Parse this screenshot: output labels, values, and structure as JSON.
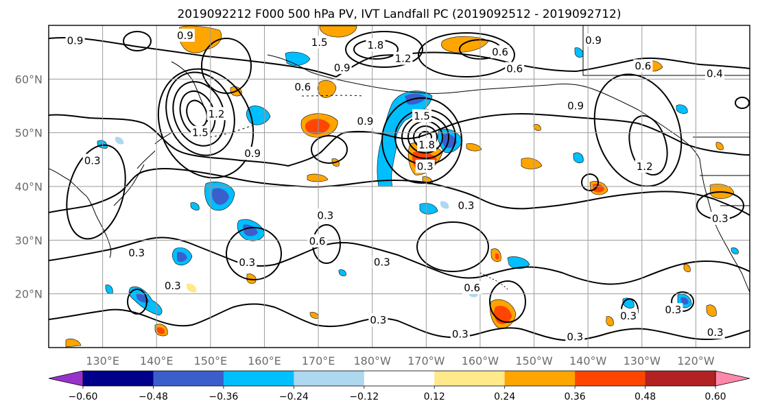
{
  "title": "2019092212 F000 500 hPa PV, IVT Landfall PC (2019092512 - 2019092712)",
  "axes": {
    "lon_labels": [
      "130°E",
      "140°E",
      "150°E",
      "160°E",
      "170°E",
      "180°W",
      "170°W",
      "160°W",
      "150°W",
      "140°W",
      "130°W",
      "120°W"
    ],
    "lon_values": [
      130,
      140,
      150,
      160,
      170,
      180,
      190,
      200,
      210,
      220,
      230,
      240
    ],
    "lat_labels": [
      "20°N",
      "30°N",
      "40°N",
      "50°N",
      "60°N"
    ],
    "lat_values": [
      20,
      30,
      40,
      50,
      60
    ],
    "lon_range": [
      120,
      250
    ],
    "lat_range": [
      10,
      70
    ],
    "grid": true,
    "grid_color": "#9a9a9a"
  },
  "colorbar": {
    "position": "bottom",
    "extend": "both",
    "bounds": [
      -0.72,
      -0.6,
      -0.48,
      -0.36,
      -0.24,
      -0.12,
      0.12,
      0.24,
      0.36,
      0.48,
      0.6,
      0.72
    ],
    "colors": [
      "#9932cc",
      "#00008b",
      "#3a5fcd",
      "#00bfff",
      "#add8f0",
      "#ffffff",
      "#ffe98a",
      "#ffa500",
      "#ff4500",
      "#b22222",
      "#ff88aa"
    ],
    "tick_values": [
      -0.6,
      -0.48,
      -0.36,
      -0.24,
      -0.12,
      0.12,
      0.24,
      0.36,
      0.48,
      0.6
    ],
    "tick_labels": [
      "−0.60",
      "−0.48",
      "−0.36",
      "−0.24",
      "−0.12",
      "0.12",
      "0.24",
      "0.36",
      "0.48",
      "0.60"
    ]
  },
  "contour_labels": [
    {
      "text": "0.9",
      "lon": 124.9,
      "lat": 67.1
    },
    {
      "text": "0.9",
      "lon": 145.3,
      "lat": 68.1
    },
    {
      "text": "1.5",
      "lon": 170.2,
      "lat": 66.8
    },
    {
      "text": "1.8",
      "lon": 180.6,
      "lat": 66.3
    },
    {
      "text": "1.2",
      "lon": 185.7,
      "lat": 63.8
    },
    {
      "text": "0.6",
      "lon": 203.7,
      "lat": 65.0
    },
    {
      "text": "0.9",
      "lon": 221.0,
      "lat": 67.2
    },
    {
      "text": "0.6",
      "lon": 230.2,
      "lat": 62.4
    },
    {
      "text": "0.6",
      "lon": 206.4,
      "lat": 61.9
    },
    {
      "text": "0.9",
      "lon": 174.4,
      "lat": 62.1
    },
    {
      "text": "0.6",
      "lon": 167.1,
      "lat": 58.5
    },
    {
      "text": "0.9",
      "lon": 217.7,
      "lat": 55.0
    },
    {
      "text": "0.4",
      "lon": 243.5,
      "lat": 61.0
    },
    {
      "text": "1.2",
      "lon": 151.1,
      "lat": 53.5
    },
    {
      "text": "1.5",
      "lon": 148.1,
      "lat": 50.0
    },
    {
      "text": "0.9",
      "lon": 178.7,
      "lat": 52.1
    },
    {
      "text": "1.5",
      "lon": 189.2,
      "lat": 53.1
    },
    {
      "text": "1.8",
      "lon": 190.1,
      "lat": 47.7
    },
    {
      "text": "0.3",
      "lon": 189.8,
      "lat": 43.7
    },
    {
      "text": "0.9",
      "lon": 157.8,
      "lat": 46.1
    },
    {
      "text": "0.3",
      "lon": 128.1,
      "lat": 44.8
    },
    {
      "text": "1.2",
      "lon": 230.5,
      "lat": 43.7
    },
    {
      "text": "0.3",
      "lon": 197.4,
      "lat": 36.4
    },
    {
      "text": "0.3",
      "lon": 171.3,
      "lat": 34.6
    },
    {
      "text": "0.6",
      "lon": 169.8,
      "lat": 29.8
    },
    {
      "text": "0.3",
      "lon": 244.5,
      "lat": 34.0
    },
    {
      "text": "0.3",
      "lon": 136.3,
      "lat": 27.6
    },
    {
      "text": "0.3",
      "lon": 156.8,
      "lat": 25.8
    },
    {
      "text": "0.3",
      "lon": 181.8,
      "lat": 25.9
    },
    {
      "text": "0.3",
      "lon": 143.0,
      "lat": 21.5
    },
    {
      "text": "0.6",
      "lon": 198.5,
      "lat": 21.1
    },
    {
      "text": "0.3",
      "lon": 181.1,
      "lat": 15.1
    },
    {
      "text": "0.3",
      "lon": 196.3,
      "lat": 12.5
    },
    {
      "text": "0.3",
      "lon": 217.6,
      "lat": 12.0
    },
    {
      "text": "0.3",
      "lon": 227.5,
      "lat": 15.9
    },
    {
      "text": "0.3",
      "lon": 235.8,
      "lat": 17.0
    },
    {
      "text": "0.3",
      "lon": 243.6,
      "lat": 12.8
    }
  ]
}
